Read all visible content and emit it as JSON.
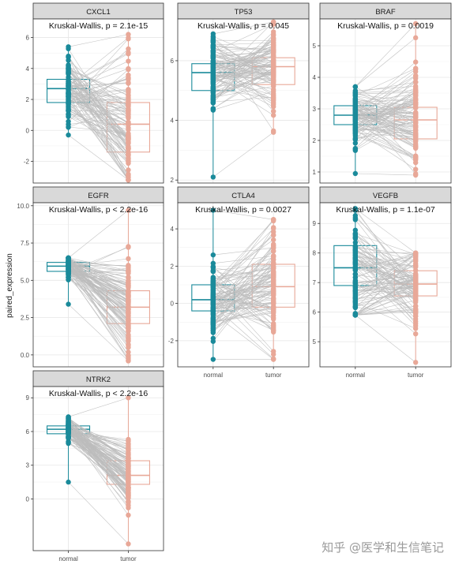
{
  "watermark": "知乎 @医学和生信笔记",
  "chart_data": {
    "type": "box-paired",
    "ylabel": "paired_expression",
    "groups": [
      "normal",
      "tumor"
    ],
    "colors": {
      "normal": "#1a8a9a",
      "tumor": "#e8a898",
      "lines": "#bdbdbd"
    },
    "grid": true,
    "panels": [
      {
        "gene": "CXCL1",
        "test": "Kruskal-Wallis, p = 2.1e-15",
        "ylim": [
          -3.4,
          7.2
        ],
        "ticks": [
          -2,
          0,
          2,
          4,
          6
        ],
        "normal": {
          "q1": 1.8,
          "median": 2.7,
          "q3": 3.3,
          "min": -0.3,
          "max": 5.4
        },
        "tumor": {
          "q1": -1.4,
          "median": 0.4,
          "q3": 1.8,
          "min": -3.2,
          "max": 6.2
        }
      },
      {
        "gene": "TP53",
        "test": "Kruskal-Wallis, p = 0.045",
        "ylim": [
          1.9,
          7.4
        ],
        "ticks": [
          2,
          4,
          6
        ],
        "normal": {
          "q1": 5.0,
          "median": 5.6,
          "q3": 5.9,
          "min": 2.1,
          "max": 6.9
        },
        "tumor": {
          "q1": 5.2,
          "median": 5.8,
          "q3": 6.1,
          "min": 3.6,
          "max": 7.3
        }
      },
      {
        "gene": "BRAF",
        "test": "Kruskal-Wallis, p = 0.0019",
        "ylim": [
          0.65,
          5.85
        ],
        "ticks": [
          1,
          2,
          3,
          4,
          5
        ],
        "normal": {
          "q1": 2.5,
          "median": 2.8,
          "q3": 3.1,
          "min": 0.95,
          "max": 3.7
        },
        "tumor": {
          "q1": 2.05,
          "median": 2.65,
          "q3": 3.05,
          "min": 0.9,
          "max": 5.7
        }
      },
      {
        "gene": "EGFR",
        "test": "Kruskal-Wallis, p < 2.2e-16",
        "ylim": [
          -0.8,
          10.2
        ],
        "ticks": [
          0.0,
          2.5,
          5.0,
          7.5,
          10.0
        ],
        "normal": {
          "q1": 5.6,
          "median": 5.95,
          "q3": 6.2,
          "min": 3.4,
          "max": 6.5
        },
        "tumor": {
          "q1": 2.1,
          "median": 3.2,
          "q3": 4.3,
          "min": -0.4,
          "max": 9.7
        }
      },
      {
        "gene": "CTLA4",
        "test": "Kruskal-Wallis, p = 0.0027",
        "ylim": [
          -3.4,
          5.4
        ],
        "ticks": [
          -2,
          0,
          2,
          4
        ],
        "normal": {
          "q1": -0.4,
          "median": 0.2,
          "q3": 1.0,
          "min": -3.0,
          "max": 5.0
        },
        "tumor": {
          "q1": -0.2,
          "median": 0.9,
          "q3": 2.1,
          "min": -3.0,
          "max": 4.5
        }
      },
      {
        "gene": "VEGFB",
        "test": "Kruskal-Wallis, p = 1.1e-07",
        "ylim": [
          4.15,
          9.7
        ],
        "ticks": [
          5,
          6,
          7,
          8,
          9
        ],
        "normal": {
          "q1": 6.9,
          "median": 7.5,
          "q3": 8.25,
          "min": 5.9,
          "max": 9.5
        },
        "tumor": {
          "q1": 6.55,
          "median": 6.95,
          "q3": 7.4,
          "min": 4.3,
          "max": 8.0
        }
      },
      {
        "gene": "NTRK2",
        "test": "Kruskal-Wallis, p < 2.2e-16",
        "ylim": [
          -4.6,
          10.0
        ],
        "ticks": [
          0,
          3,
          6,
          9
        ],
        "normal": {
          "q1": 5.8,
          "median": 6.2,
          "q3": 6.5,
          "min": 1.5,
          "max": 7.3
        },
        "tumor": {
          "q1": 1.3,
          "median": 2.1,
          "q3": 3.4,
          "min": -4.0,
          "max": 9.0
        }
      }
    ]
  }
}
